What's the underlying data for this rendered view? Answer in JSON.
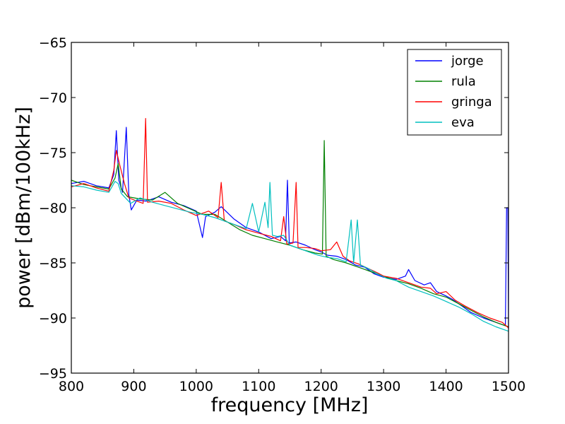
{
  "chart_data": {
    "type": "line",
    "xlabel": "frequency [MHz]",
    "ylabel": "power [dBm/100kHz]",
    "xlim": [
      800,
      1500
    ],
    "ylim": [
      -95,
      -65
    ],
    "xticks": [
      800,
      900,
      1000,
      1100,
      1200,
      1300,
      1400,
      1500
    ],
    "yticks": [
      -95,
      -90,
      -85,
      -80,
      -75,
      -70,
      -65
    ],
    "xtick_labels": [
      "800",
      "900",
      "1000",
      "1100",
      "1200",
      "1300",
      "1400",
      "1500"
    ],
    "ytick_labels": [
      "−95",
      "−90",
      "−85",
      "−80",
      "−75",
      "−70",
      "−65"
    ],
    "grid": false,
    "legend": "top-right",
    "series": [
      {
        "name": "jorge",
        "color": "#0000ff",
        "points": [
          [
            800,
            -77.8
          ],
          [
            820,
            -77.6
          ],
          [
            840,
            -78.0
          ],
          [
            860,
            -78.2
          ],
          [
            868,
            -77.0
          ],
          [
            872,
            -73.0
          ],
          [
            876,
            -77.5
          ],
          [
            882,
            -78.6
          ],
          [
            888,
            -72.7
          ],
          [
            892,
            -78.8
          ],
          [
            896,
            -80.2
          ],
          [
            905,
            -79.3
          ],
          [
            920,
            -79.4
          ],
          [
            940,
            -79.0
          ],
          [
            960,
            -79.5
          ],
          [
            980,
            -79.8
          ],
          [
            1000,
            -80.3
          ],
          [
            1010,
            -82.7
          ],
          [
            1015,
            -80.8
          ],
          [
            1030,
            -80.4
          ],
          [
            1040,
            -79.9
          ],
          [
            1060,
            -81.0
          ],
          [
            1080,
            -81.8
          ],
          [
            1100,
            -82.2
          ],
          [
            1120,
            -82.8
          ],
          [
            1135,
            -82.6
          ],
          [
            1143,
            -83.0
          ],
          [
            1146,
            -77.5
          ],
          [
            1149,
            -83.2
          ],
          [
            1160,
            -83.1
          ],
          [
            1175,
            -83.4
          ],
          [
            1190,
            -83.8
          ],
          [
            1200,
            -84.0
          ],
          [
            1210,
            -84.3
          ],
          [
            1225,
            -84.4
          ],
          [
            1240,
            -84.7
          ],
          [
            1255,
            -85.2
          ],
          [
            1270,
            -85.4
          ],
          [
            1285,
            -86.0
          ],
          [
            1300,
            -86.3
          ],
          [
            1320,
            -86.5
          ],
          [
            1335,
            -86.2
          ],
          [
            1340,
            -85.6
          ],
          [
            1350,
            -86.6
          ],
          [
            1365,
            -87.0
          ],
          [
            1375,
            -86.8
          ],
          [
            1385,
            -87.6
          ],
          [
            1400,
            -88.0
          ],
          [
            1410,
            -88.3
          ],
          [
            1425,
            -88.9
          ],
          [
            1440,
            -89.5
          ],
          [
            1460,
            -90.0
          ],
          [
            1480,
            -90.4
          ],
          [
            1495,
            -90.7
          ],
          [
            1497,
            -80.0
          ],
          [
            1499,
            -80.0
          ],
          [
            1500,
            -91.0
          ]
        ]
      },
      {
        "name": "rula",
        "color": "#008000",
        "points": [
          [
            800,
            -77.5
          ],
          [
            820,
            -77.9
          ],
          [
            840,
            -78.1
          ],
          [
            860,
            -78.3
          ],
          [
            870,
            -77.3
          ],
          [
            875,
            -76.0
          ],
          [
            880,
            -78.3
          ],
          [
            890,
            -79.0
          ],
          [
            910,
            -79.2
          ],
          [
            930,
            -79.3
          ],
          [
            950,
            -78.6
          ],
          [
            970,
            -79.6
          ],
          [
            990,
            -80.1
          ],
          [
            1010,
            -80.6
          ],
          [
            1030,
            -80.6
          ],
          [
            1050,
            -81.3
          ],
          [
            1070,
            -82.0
          ],
          [
            1090,
            -82.5
          ],
          [
            1110,
            -82.8
          ],
          [
            1130,
            -83.1
          ],
          [
            1150,
            -83.4
          ],
          [
            1170,
            -83.8
          ],
          [
            1190,
            -84.1
          ],
          [
            1202,
            -84.2
          ],
          [
            1205,
            -73.9
          ],
          [
            1208,
            -84.4
          ],
          [
            1220,
            -84.7
          ],
          [
            1240,
            -85.0
          ],
          [
            1260,
            -85.4
          ],
          [
            1280,
            -85.8
          ],
          [
            1300,
            -86.2
          ],
          [
            1320,
            -86.6
          ],
          [
            1340,
            -86.9
          ],
          [
            1360,
            -87.3
          ],
          [
            1380,
            -87.8
          ],
          [
            1400,
            -88.1
          ],
          [
            1420,
            -88.7
          ],
          [
            1440,
            -89.3
          ],
          [
            1460,
            -89.9
          ],
          [
            1480,
            -90.4
          ],
          [
            1500,
            -90.8
          ]
        ]
      },
      {
        "name": "gringa",
        "color": "#ff0000",
        "points": [
          [
            800,
            -78.1
          ],
          [
            820,
            -77.8
          ],
          [
            840,
            -78.2
          ],
          [
            860,
            -78.5
          ],
          [
            868,
            -76.6
          ],
          [
            872,
            -74.8
          ],
          [
            877,
            -76.0
          ],
          [
            885,
            -77.8
          ],
          [
            892,
            -79.1
          ],
          [
            905,
            -79.4
          ],
          [
            915,
            -79.6
          ],
          [
            919,
            -71.9
          ],
          [
            922,
            -79.5
          ],
          [
            940,
            -79.4
          ],
          [
            960,
            -79.6
          ],
          [
            980,
            -80.2
          ],
          [
            1000,
            -80.7
          ],
          [
            1020,
            -80.3
          ],
          [
            1035,
            -80.9
          ],
          [
            1040,
            -77.7
          ],
          [
            1045,
            -81.2
          ],
          [
            1060,
            -81.5
          ],
          [
            1080,
            -82.0
          ],
          [
            1100,
            -82.3
          ],
          [
            1120,
            -82.6
          ],
          [
            1135,
            -83.0
          ],
          [
            1140,
            -80.8
          ],
          [
            1145,
            -83.3
          ],
          [
            1155,
            -83.2
          ],
          [
            1160,
            -77.7
          ],
          [
            1163,
            -83.6
          ],
          [
            1175,
            -83.6
          ],
          [
            1190,
            -83.7
          ],
          [
            1200,
            -83.9
          ],
          [
            1215,
            -83.8
          ],
          [
            1225,
            -83.1
          ],
          [
            1235,
            -84.4
          ],
          [
            1245,
            -84.8
          ],
          [
            1260,
            -85.1
          ],
          [
            1275,
            -85.5
          ],
          [
            1290,
            -85.9
          ],
          [
            1300,
            -86.2
          ],
          [
            1320,
            -86.4
          ],
          [
            1340,
            -86.8
          ],
          [
            1360,
            -87.2
          ],
          [
            1375,
            -87.3
          ],
          [
            1385,
            -87.8
          ],
          [
            1400,
            -87.6
          ],
          [
            1415,
            -88.4
          ],
          [
            1430,
            -88.9
          ],
          [
            1450,
            -89.5
          ],
          [
            1470,
            -90.0
          ],
          [
            1490,
            -90.4
          ],
          [
            1500,
            -90.9
          ]
        ]
      },
      {
        "name": "eva",
        "color": "#00bfbf",
        "points": [
          [
            800,
            -78.0
          ],
          [
            820,
            -78.1
          ],
          [
            840,
            -78.4
          ],
          [
            860,
            -78.6
          ],
          [
            870,
            -77.6
          ],
          [
            875,
            -77.8
          ],
          [
            880,
            -78.7
          ],
          [
            895,
            -79.6
          ],
          [
            910,
            -79.1
          ],
          [
            930,
            -79.5
          ],
          [
            950,
            -79.8
          ],
          [
            970,
            -80.1
          ],
          [
            990,
            -80.4
          ],
          [
            1010,
            -80.6
          ],
          [
            1030,
            -80.9
          ],
          [
            1050,
            -81.3
          ],
          [
            1065,
            -81.6
          ],
          [
            1080,
            -81.9
          ],
          [
            1090,
            -79.6
          ],
          [
            1100,
            -82.2
          ],
          [
            1110,
            -79.5
          ],
          [
            1115,
            -81.8
          ],
          [
            1118,
            -77.7
          ],
          [
            1122,
            -82.5
          ],
          [
            1130,
            -82.6
          ],
          [
            1140,
            -82.5
          ],
          [
            1150,
            -83.4
          ],
          [
            1165,
            -83.7
          ],
          [
            1180,
            -84.0
          ],
          [
            1195,
            -84.3
          ],
          [
            1210,
            -84.5
          ],
          [
            1225,
            -84.6
          ],
          [
            1240,
            -84.9
          ],
          [
            1248,
            -81.1
          ],
          [
            1252,
            -85.0
          ],
          [
            1258,
            -81.1
          ],
          [
            1263,
            -85.2
          ],
          [
            1275,
            -85.5
          ],
          [
            1290,
            -86.0
          ],
          [
            1305,
            -86.4
          ],
          [
            1320,
            -86.6
          ],
          [
            1340,
            -87.2
          ],
          [
            1360,
            -87.6
          ],
          [
            1380,
            -88.0
          ],
          [
            1400,
            -88.5
          ],
          [
            1420,
            -89.0
          ],
          [
            1440,
            -89.6
          ],
          [
            1460,
            -90.3
          ],
          [
            1480,
            -90.8
          ],
          [
            1500,
            -91.2
          ]
        ]
      }
    ]
  }
}
